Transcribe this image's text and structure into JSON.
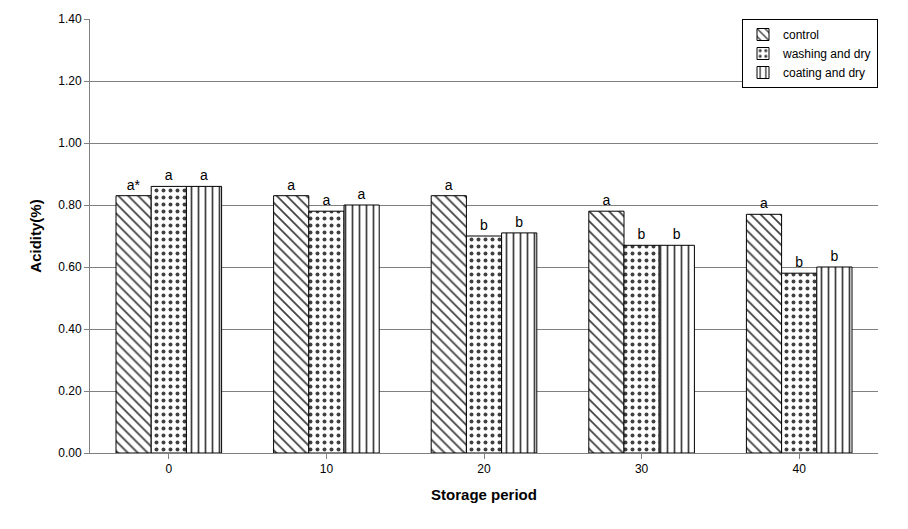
{
  "chart_data": {
    "type": "bar",
    "x_label": "Storage period",
    "y_label": "Acidity(%)",
    "categories": [
      "0",
      "10",
      "20",
      "30",
      "40"
    ],
    "series": [
      {
        "name": "control",
        "color": "#404040",
        "marker": "backslash",
        "values": [
          0.83,
          0.83,
          0.83,
          0.78,
          0.77
        ],
        "annotations": [
          "a*",
          "a",
          "a",
          "a",
          "a"
        ]
      },
      {
        "name": "washing and dry",
        "color": "#404040",
        "marker": "dot",
        "values": [
          0.86,
          0.78,
          0.7,
          0.67,
          0.58
        ],
        "annotations": [
          "a",
          "a",
          "b",
          "b",
          "b"
        ]
      },
      {
        "name": "coating and dry",
        "color": "#404040",
        "marker": "vertical",
        "values": [
          0.86,
          0.8,
          0.71,
          0.67,
          0.6
        ],
        "annotations": [
          "a",
          "a",
          "b",
          "b",
          "b"
        ]
      }
    ],
    "ylim": [
      0,
      1.4
    ],
    "yticks": [
      {
        "value": 0,
        "label": "0.00"
      },
      {
        "value": 0.2,
        "label": "0.20"
      },
      {
        "value": 0.4,
        "label": "0.40"
      },
      {
        "value": 0.6,
        "label": "0.60"
      },
      {
        "value": 0.8,
        "label": "0.80"
      },
      {
        "value": 1.0,
        "label": "1.00"
      },
      {
        "value": 1.2,
        "label": "1.20"
      },
      {
        "value": 1.4,
        "label": "1.40"
      }
    ],
    "grid": true,
    "legend": "upper right"
  }
}
